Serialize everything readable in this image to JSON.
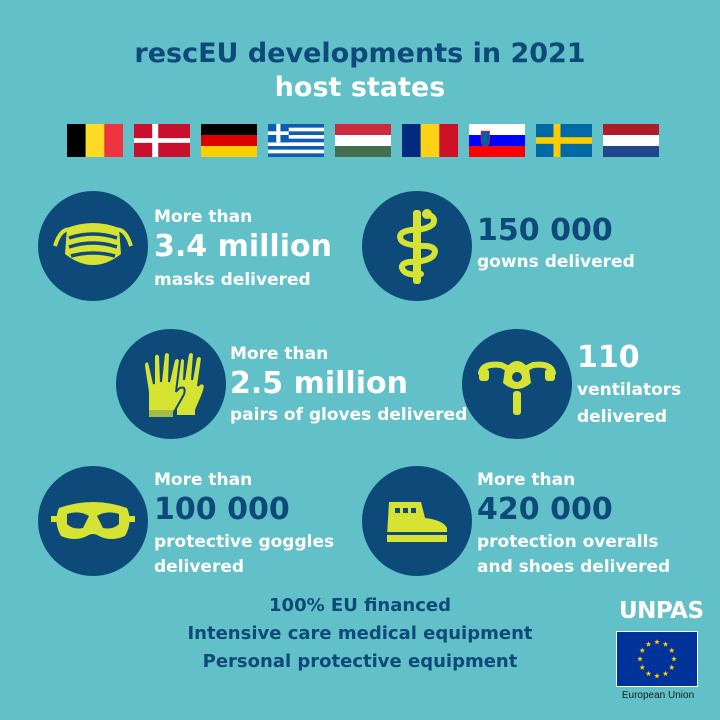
{
  "title": {
    "line1": "rescEU developments in 2021",
    "line2": "host states"
  },
  "flags": [
    "Belgium",
    "Denmark",
    "Germany",
    "Greece",
    "Hungary",
    "Romania",
    "Slovenia",
    "Sweden",
    "Netherlands"
  ],
  "stats": {
    "masks": {
      "prefix": "More than",
      "value": "3.4 million",
      "label": "masks delivered",
      "icon": "face-mask-icon"
    },
    "gowns": {
      "value": "150 000",
      "label": "gowns delivered",
      "icon": "caduceus-icon"
    },
    "gloves": {
      "prefix": "More than",
      "value": "2.5 million",
      "label": "pairs of gloves delivered",
      "icon": "gloves-icon"
    },
    "ventilators": {
      "value": "110",
      "label_line1": "ventilators",
      "label_line2": "delivered",
      "icon": "oxygen-mask-icon"
    },
    "goggles": {
      "prefix": "More than",
      "value": "100 000",
      "label_line1": "protective goggles",
      "label_line2": "delivered",
      "icon": "goggles-icon"
    },
    "overalls": {
      "prefix": "More than",
      "value": "420 000",
      "label_line1": "protection overalls",
      "label_line2": "and shoes delivered",
      "icon": "shoe-icon"
    }
  },
  "footer": {
    "line1": "100% EU financed",
    "line2": "Intensive care medical equipment",
    "line3": "Personal protective equipment"
  },
  "branding": {
    "unpas": "UNPAS",
    "eu": "European Union"
  },
  "colors": {
    "background": "#62c0c8",
    "navy": "#0d4a7a",
    "icon_yellow": "#d6e332",
    "white": "#ffffff"
  }
}
